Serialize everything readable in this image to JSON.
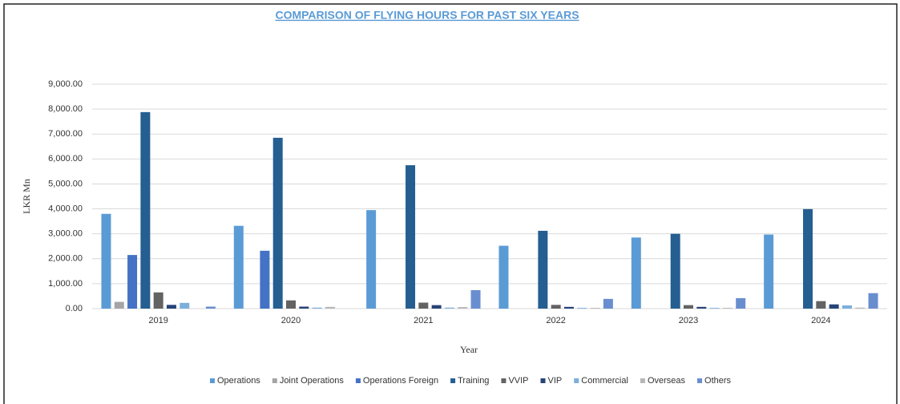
{
  "chart_data": {
    "type": "bar",
    "title": "COMPARISON OF FLYING HOURS FOR PAST SIX YEARS",
    "x_label": "Year",
    "y_label": "LKR Mn",
    "categories": [
      "2019",
      "2020",
      "2021",
      "2022",
      "2023",
      "2024"
    ],
    "series": [
      {
        "name": "Operations",
        "color": "#5b9bd5",
        "values": [
          3800,
          3320,
          3950,
          2520,
          2850,
          2970
        ]
      },
      {
        "name": "Joint Operations",
        "color": "#a5a5a5",
        "values": [
          270,
          0,
          0,
          0,
          0,
          0
        ]
      },
      {
        "name": "Operations Foreign",
        "color": "#4472c4",
        "values": [
          2150,
          2320,
          0,
          0,
          0,
          0
        ]
      },
      {
        "name": "Training",
        "color": "#255e91",
        "values": [
          7880,
          6850,
          5750,
          3120,
          3000,
          3990
        ]
      },
      {
        "name": "VVIP",
        "color": "#636363",
        "values": [
          650,
          330,
          240,
          150,
          140,
          300
        ]
      },
      {
        "name": "VIP",
        "color": "#264478",
        "values": [
          150,
          80,
          140,
          70,
          70,
          170
        ]
      },
      {
        "name": "Commercial",
        "color": "#7cafdd",
        "values": [
          230,
          40,
          40,
          30,
          30,
          130
        ]
      },
      {
        "name": "Overseas",
        "color": "#b7b7b7",
        "values": [
          0,
          70,
          60,
          30,
          30,
          40
        ]
      },
      {
        "name": "Others",
        "color": "#698ed0",
        "values": [
          80,
          0,
          740,
          390,
          420,
          620
        ]
      }
    ],
    "ylim": [
      0,
      9000
    ],
    "yticks": [
      {
        "value": 0,
        "label": "0.00"
      },
      {
        "value": 1000,
        "label": "1,000.00"
      },
      {
        "value": 2000,
        "label": "2,000.00"
      },
      {
        "value": 3000,
        "label": "3,000.00"
      },
      {
        "value": 4000,
        "label": "4,000.00"
      },
      {
        "value": 5000,
        "label": "5,000.00"
      },
      {
        "value": 6000,
        "label": "6,000.00"
      },
      {
        "value": 7000,
        "label": "7,000.00"
      },
      {
        "value": 8000,
        "label": "8,000.00"
      },
      {
        "value": 9000,
        "label": "9,000.00"
      }
    ],
    "grid": true,
    "legend": "bottom"
  }
}
